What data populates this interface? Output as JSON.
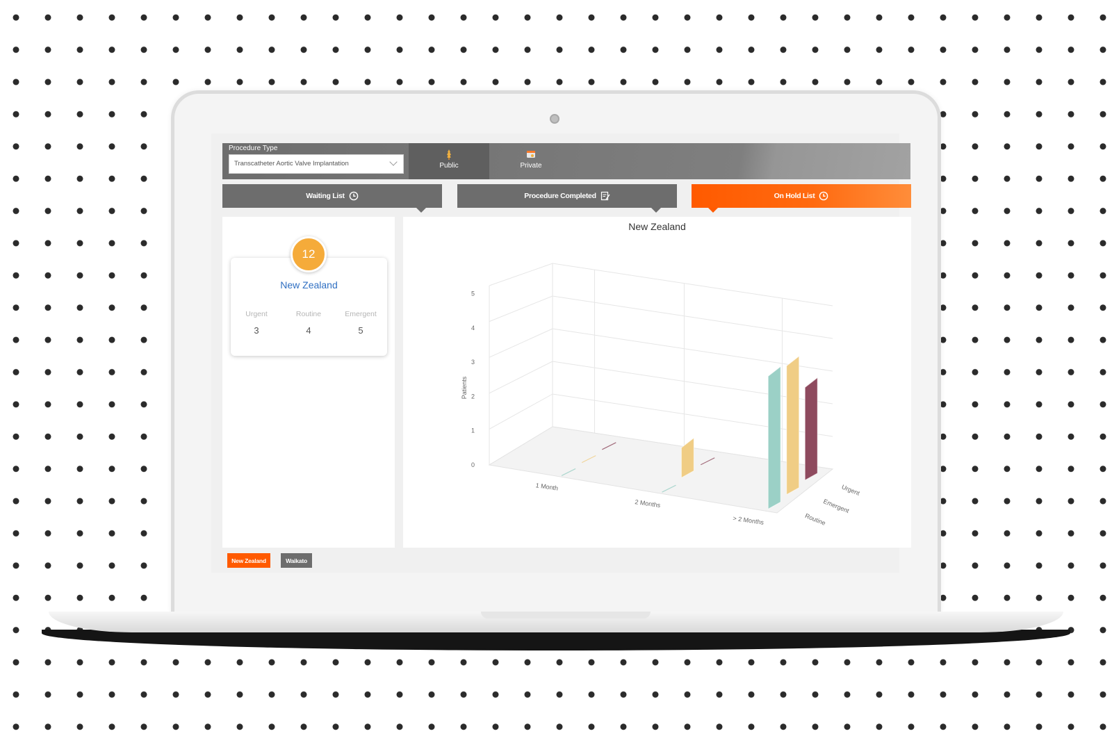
{
  "procedure": {
    "label": "Procedure Type",
    "selected": "Transcatheter Aortic Valve Implantation"
  },
  "type_tabs": [
    {
      "label": "Public",
      "icon": "public-funding-icon"
    },
    {
      "label": "Private",
      "icon": "private-funding-icon"
    }
  ],
  "list_tabs": [
    {
      "label": "Waiting List",
      "icon": "clock-icon"
    },
    {
      "label": "Procedure Completed",
      "icon": "edit-icon"
    },
    {
      "label": "On Hold List",
      "icon": "clock-icon",
      "active": true
    }
  ],
  "summary": {
    "total": "12",
    "region": "New Zealand",
    "stats": [
      {
        "label": "Urgent",
        "value": "3"
      },
      {
        "label": "Routine",
        "value": "4"
      },
      {
        "label": "Emergent",
        "value": "5"
      }
    ]
  },
  "region_buttons": [
    {
      "label": "New Zealand",
      "active": true
    },
    {
      "label": "Waikato",
      "active": false
    }
  ],
  "colors": {
    "accent": "#ff5a00",
    "badge": "#f5ab3a",
    "urgent": "#8e4a5e",
    "emergent": "#f0cd85",
    "routine": "#9bd0c6"
  },
  "chart_data": {
    "type": "bar",
    "title": "New Zealand",
    "ylabel": "Patients",
    "ylim": [
      0,
      5
    ],
    "yticks": [
      "0",
      "1",
      "2",
      "3",
      "4",
      "5"
    ],
    "categories": [
      "1 Month",
      "2 Months",
      "> 2 Months"
    ],
    "series": [
      {
        "name": "Urgent",
        "values": [
          0,
          0,
          3
        ]
      },
      {
        "name": "Emergent",
        "values": [
          0,
          1,
          4
        ]
      },
      {
        "name": "Routine",
        "values": [
          0,
          0,
          4
        ]
      }
    ],
    "grid": true
  }
}
